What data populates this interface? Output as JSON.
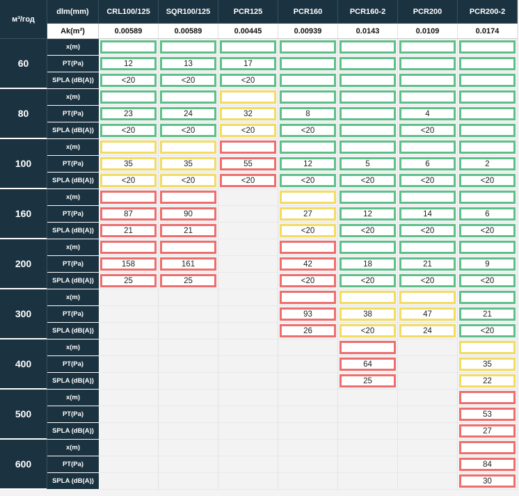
{
  "header": {
    "corner": "м³/год",
    "dim_label": "dlm(mm)",
    "ak_label": "Ak(m²)",
    "columns": [
      {
        "line1": "CRL",
        "line2": "100/125",
        "ak": "0.00589"
      },
      {
        "line1": "SQR",
        "line2": "100/125",
        "ak": "0.00589"
      },
      {
        "line1": "PCR",
        "line2": "125",
        "ak": "0.00445"
      },
      {
        "line1": "PCR",
        "line2": "160",
        "ak": "0.00939"
      },
      {
        "line1": "PCR",
        "line2": "160-2",
        "ak": "0.0143"
      },
      {
        "line1": "PCR",
        "line2": "200",
        "ak": "0.0109"
      },
      {
        "line1": "PCR",
        "line2": "200-2",
        "ak": "0.0174"
      }
    ]
  },
  "metric_labels": [
    "x(m)",
    "PT(Pa)",
    "SPLA (dB(A))"
  ],
  "colors": {
    "header_bg": "#1b3240",
    "green": "#5dc08a",
    "yellow": "#f2dc62",
    "red": "#ee6e6e",
    "empty_bg": "#f3f3f3"
  },
  "groups": [
    {
      "flow": "60",
      "cells": [
        [
          "g",
          "g",
          "g",
          null,
          null,
          null,
          null
        ],
        [
          {
            "s": "g",
            "v": "12"
          },
          {
            "s": "g",
            "v": "13"
          },
          {
            "s": "g",
            "v": "17"
          },
          {
            "s": "g",
            "v": ""
          },
          {
            "s": "g",
            "v": ""
          },
          {
            "s": "g",
            "v": ""
          },
          {
            "s": "g",
            "v": ""
          }
        ],
        [
          {
            "s": "g",
            "v": "<20"
          },
          {
            "s": "g",
            "v": "<20"
          },
          {
            "s": "g",
            "v": "<20"
          },
          {
            "s": "g",
            "v": ""
          },
          {
            "s": "g",
            "v": ""
          },
          {
            "s": "g",
            "v": ""
          },
          {
            "s": "g",
            "v": ""
          }
        ]
      ],
      "xrow": [
        "g",
        "g",
        "g",
        "g",
        "g",
        "g",
        "g"
      ]
    },
    {
      "flow": "80",
      "xrow": [
        "g",
        "g",
        "y",
        "g",
        "g",
        "g",
        "g"
      ],
      "cells": [
        null,
        [
          {
            "s": "g",
            "v": "23"
          },
          {
            "s": "g",
            "v": "24"
          },
          {
            "s": "y",
            "v": "32"
          },
          {
            "s": "g",
            "v": "8"
          },
          {
            "s": "g",
            "v": ""
          },
          {
            "s": "g",
            "v": "4"
          },
          {
            "s": "g",
            "v": ""
          }
        ],
        [
          {
            "s": "g",
            "v": "<20"
          },
          {
            "s": "g",
            "v": "<20"
          },
          {
            "s": "y",
            "v": "<20"
          },
          {
            "s": "g",
            "v": "<20"
          },
          {
            "s": "g",
            "v": ""
          },
          {
            "s": "g",
            "v": "<20"
          },
          {
            "s": "g",
            "v": ""
          }
        ]
      ]
    },
    {
      "flow": "100",
      "xrow": [
        "y",
        "y",
        "r",
        "g",
        "g",
        "g",
        "g"
      ],
      "cells": [
        null,
        [
          {
            "s": "y",
            "v": "35"
          },
          {
            "s": "y",
            "v": "35"
          },
          {
            "s": "r",
            "v": "55"
          },
          {
            "s": "g",
            "v": "12"
          },
          {
            "s": "g",
            "v": "5"
          },
          {
            "s": "g",
            "v": "6"
          },
          {
            "s": "g",
            "v": "2"
          }
        ],
        [
          {
            "s": "y",
            "v": "<20"
          },
          {
            "s": "y",
            "v": "<20"
          },
          {
            "s": "r",
            "v": "<20"
          },
          {
            "s": "g",
            "v": "<20"
          },
          {
            "s": "g",
            "v": "<20"
          },
          {
            "s": "g",
            "v": "<20"
          },
          {
            "s": "g",
            "v": "<20"
          }
        ]
      ]
    },
    {
      "flow": "160",
      "xrow": [
        "r",
        "r",
        null,
        "y",
        "g",
        "g",
        "g"
      ],
      "cells": [
        null,
        [
          {
            "s": "r",
            "v": "87"
          },
          {
            "s": "r",
            "v": "90"
          },
          null,
          {
            "s": "y",
            "v": "27"
          },
          {
            "s": "g",
            "v": "12"
          },
          {
            "s": "g",
            "v": "14"
          },
          {
            "s": "g",
            "v": "6"
          }
        ],
        [
          {
            "s": "r",
            "v": "21"
          },
          {
            "s": "r",
            "v": "21"
          },
          null,
          {
            "s": "y",
            "v": "<20"
          },
          {
            "s": "g",
            "v": "<20"
          },
          {
            "s": "g",
            "v": "<20"
          },
          {
            "s": "g",
            "v": "<20"
          }
        ]
      ]
    },
    {
      "flow": "200",
      "xrow": [
        "r",
        "r",
        null,
        "r",
        "g",
        "g",
        "g"
      ],
      "cells": [
        null,
        [
          {
            "s": "r",
            "v": "158"
          },
          {
            "s": "r",
            "v": "161"
          },
          null,
          {
            "s": "r",
            "v": "42"
          },
          {
            "s": "g",
            "v": "18"
          },
          {
            "s": "g",
            "v": "21"
          },
          {
            "s": "g",
            "v": "9"
          }
        ],
        [
          {
            "s": "r",
            "v": "25"
          },
          {
            "s": "r",
            "v": "25"
          },
          null,
          {
            "s": "r",
            "v": "<20"
          },
          {
            "s": "g",
            "v": "<20"
          },
          {
            "s": "g",
            "v": "<20"
          },
          {
            "s": "g",
            "v": "<20"
          }
        ]
      ]
    },
    {
      "flow": "300",
      "xrow": [
        null,
        null,
        null,
        "r",
        "y",
        "y",
        "g"
      ],
      "cells": [
        null,
        [
          null,
          null,
          null,
          {
            "s": "r",
            "v": "93"
          },
          {
            "s": "y",
            "v": "38"
          },
          {
            "s": "y",
            "v": "47"
          },
          {
            "s": "g",
            "v": "21"
          }
        ],
        [
          null,
          null,
          null,
          {
            "s": "r",
            "v": "26"
          },
          {
            "s": "y",
            "v": "<20"
          },
          {
            "s": "y",
            "v": "24"
          },
          {
            "s": "g",
            "v": "<20"
          }
        ]
      ]
    },
    {
      "flow": "400",
      "xrow": [
        null,
        null,
        null,
        null,
        "r",
        null,
        "y"
      ],
      "cells": [
        null,
        [
          null,
          null,
          null,
          null,
          {
            "s": "r",
            "v": "64"
          },
          null,
          {
            "s": "y",
            "v": "35"
          }
        ],
        [
          null,
          null,
          null,
          null,
          {
            "s": "r",
            "v": "25"
          },
          null,
          {
            "s": "y",
            "v": "22"
          }
        ]
      ]
    },
    {
      "flow": "500",
      "xrow": [
        null,
        null,
        null,
        null,
        null,
        null,
        "r"
      ],
      "cells": [
        null,
        [
          null,
          null,
          null,
          null,
          null,
          null,
          {
            "s": "r",
            "v": "53"
          }
        ],
        [
          null,
          null,
          null,
          null,
          null,
          null,
          {
            "s": "r",
            "v": "27"
          }
        ]
      ]
    },
    {
      "flow": "600",
      "xrow": [
        null,
        null,
        null,
        null,
        null,
        null,
        "r"
      ],
      "cells": [
        null,
        [
          null,
          null,
          null,
          null,
          null,
          null,
          {
            "s": "r",
            "v": "84"
          }
        ],
        [
          null,
          null,
          null,
          null,
          null,
          null,
          {
            "s": "r",
            "v": "30"
          }
        ]
      ]
    }
  ]
}
